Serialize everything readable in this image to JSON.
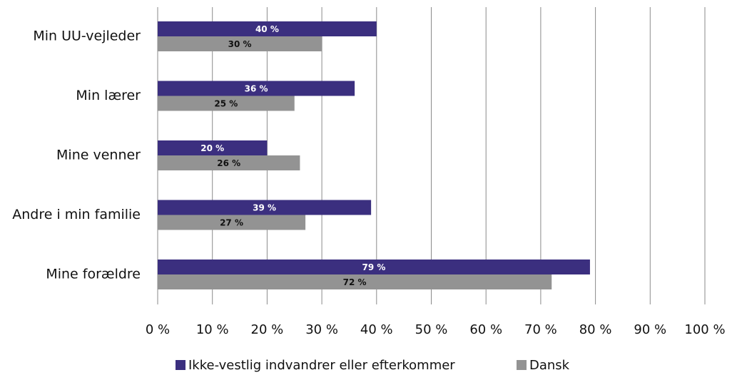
{
  "chart_data": {
    "type": "barh",
    "categories": [
      "Min UU-vejleder",
      "Min lærer",
      "Mine venner",
      "Andre i min familie",
      "Mine forældre"
    ],
    "series": [
      {
        "name": "Ikke-vestlig indvandrer eller efterkommer",
        "color": "#3b2f7f",
        "values": [
          40,
          36,
          20,
          39,
          79
        ],
        "value_labels": [
          "40 %",
          "36 %",
          "20 %",
          "39 %",
          "79 %"
        ]
      },
      {
        "name": "Dansk",
        "color": "#939393",
        "values": [
          30,
          25,
          26,
          27,
          72
        ],
        "value_labels": [
          "30 %",
          "25 %",
          "26 %",
          "27 %",
          "72 %"
        ]
      }
    ],
    "xlim": [
      0,
      100
    ],
    "xticks": [
      {
        "value": 0,
        "label": "0 %"
      },
      {
        "value": 10,
        "label": "10 %"
      },
      {
        "value": 20,
        "label": "20 %"
      },
      {
        "value": 30,
        "label": "30 %"
      },
      {
        "value": 40,
        "label": "40 %"
      },
      {
        "value": 50,
        "label": "50 %"
      },
      {
        "value": 60,
        "label": "60 %"
      },
      {
        "value": 70,
        "label": "70 %"
      },
      {
        "value": 80,
        "label": "80 %"
      },
      {
        "value": 90,
        "label": "90 %"
      },
      {
        "value": 100,
        "label": "100 %"
      }
    ],
    "grid": true,
    "legend": "bottom"
  }
}
